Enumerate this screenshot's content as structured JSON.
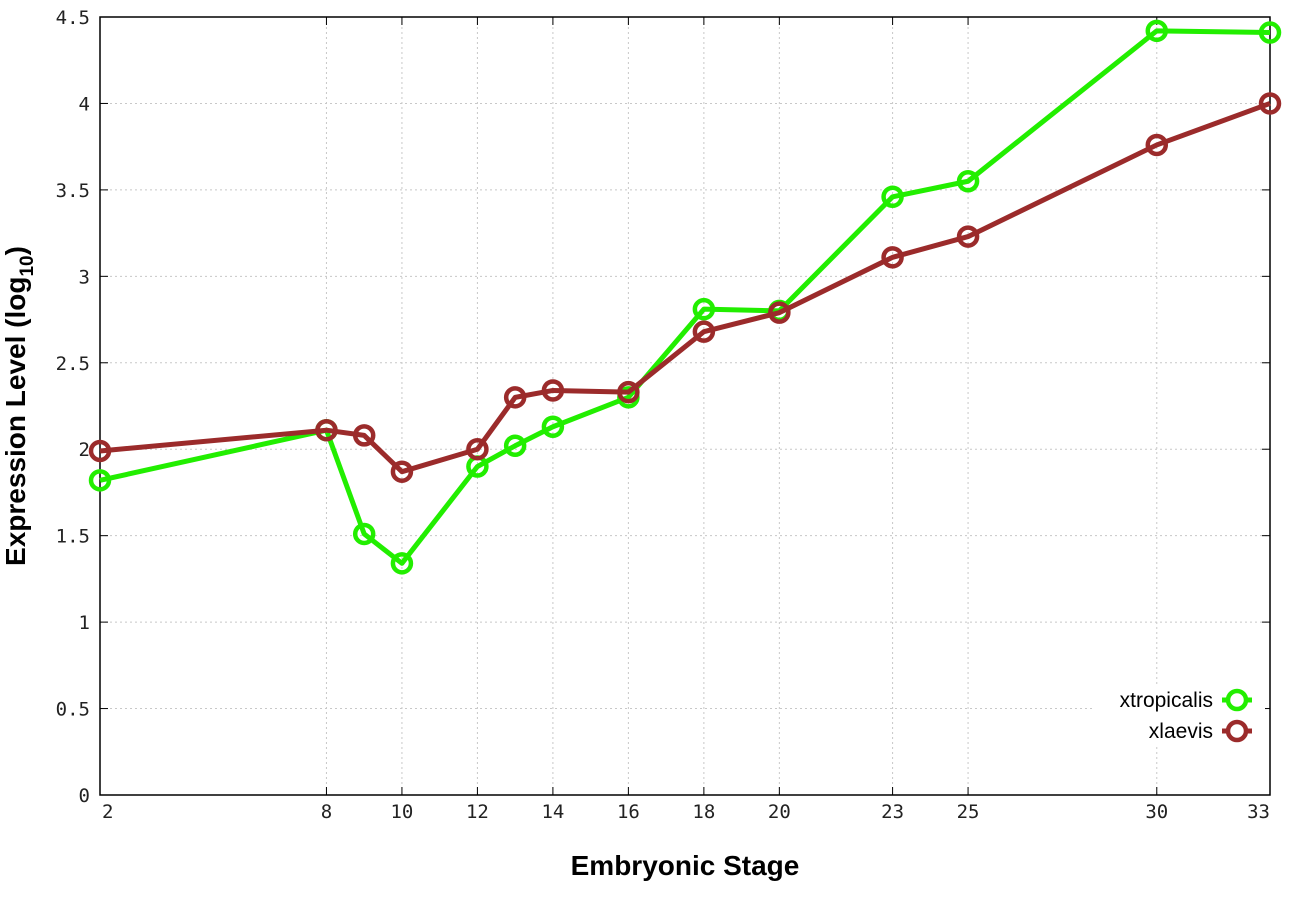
{
  "chart_data": {
    "type": "line",
    "xlabel": "Embryonic Stage",
    "ylabel": "Expression Level (log",
    "ylabel_subscript": "10",
    "ylabel_close": ")",
    "xlim": [
      2,
      33
    ],
    "ylim": [
      0,
      4.5
    ],
    "x_ticks": [
      2,
      8,
      10,
      12,
      14,
      16,
      18,
      20,
      23,
      25,
      30,
      33
    ],
    "y_ticks": [
      0,
      0.5,
      1,
      1.5,
      2,
      2.5,
      3,
      3.5,
      4,
      4.5
    ],
    "y_tick_labels": [
      "0",
      "0.5",
      "1",
      "1.5",
      "2",
      "2.5",
      "3",
      "3.5",
      "4",
      "4.5"
    ],
    "grid": true,
    "legend_position": "bottom-right",
    "x": [
      2,
      8,
      9,
      10,
      12,
      13,
      14,
      16,
      18,
      20,
      23,
      25,
      30,
      33
    ],
    "series": [
      {
        "name": "xtropicalis",
        "color": "#22ee00",
        "values": [
          1.82,
          2.11,
          1.51,
          1.34,
          1.9,
          2.02,
          2.13,
          2.3,
          2.81,
          2.8,
          3.46,
          3.55,
          4.42,
          4.41
        ]
      },
      {
        "name": "xlaevis",
        "color": "#9b2b2b",
        "values": [
          1.99,
          2.11,
          2.08,
          1.87,
          2.0,
          2.3,
          2.34,
          2.33,
          2.68,
          2.79,
          3.11,
          3.23,
          3.76,
          4.0
        ]
      }
    ]
  }
}
